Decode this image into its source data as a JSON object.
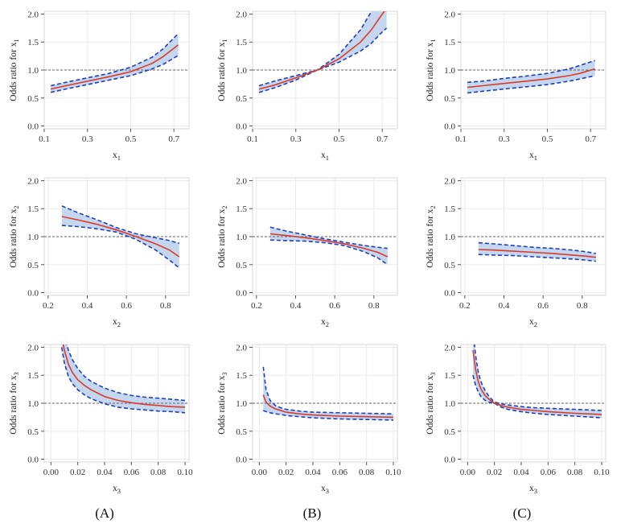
{
  "chart_data": [
    {
      "type": "line",
      "panel": "A",
      "row": 1,
      "xlabel": "x",
      "xlabel_sub": "1",
      "ylabel": "Odds ratio for  x",
      "ylabel_sub": "1",
      "xlim": [
        0.1,
        0.77
      ],
      "ylim": [
        -0.05,
        2.05
      ],
      "xticks": [
        "0.1",
        "0.3",
        "0.5",
        "0.7"
      ],
      "yticks": [
        "0.0",
        "0.5",
        "1.0",
        "1.5",
        "2.0"
      ],
      "ref": 1.0,
      "x": [
        0.13,
        0.2,
        0.3,
        0.4,
        0.5,
        0.6,
        0.65,
        0.72
      ],
      "series": [
        {
          "values": [
            0.66,
            0.72,
            0.8,
            0.88,
            0.97,
            1.12,
            1.24,
            1.45
          ]
        },
        {
          "values": [
            0.72,
            0.78,
            0.86,
            0.94,
            1.05,
            1.23,
            1.38,
            1.65
          ]
        },
        {
          "values": [
            0.6,
            0.66,
            0.74,
            0.82,
            0.9,
            1.02,
            1.1,
            1.26
          ]
        }
      ]
    },
    {
      "type": "line",
      "panel": "B",
      "row": 1,
      "xlabel": "x",
      "xlabel_sub": "1",
      "ylabel": "Odds ratio for  x",
      "ylabel_sub": "1",
      "xlim": [
        0.1,
        0.77
      ],
      "ylim": [
        -0.05,
        2.05
      ],
      "xticks": [
        "0.1",
        "0.3",
        "0.5",
        "0.7"
      ],
      "yticks": [
        "0.0",
        "0.5",
        "1.0",
        "1.5",
        "2.0"
      ],
      "ref": 1.0,
      "x": [
        0.13,
        0.2,
        0.3,
        0.4,
        0.5,
        0.6,
        0.65,
        0.7,
        0.72
      ],
      "series": [
        {
          "values": [
            0.66,
            0.73,
            0.86,
            1.0,
            1.2,
            1.5,
            1.72,
            2.0,
            2.1
          ]
        },
        {
          "values": [
            0.72,
            0.8,
            0.9,
            1.0,
            1.28,
            1.72,
            2.05,
            2.3,
            2.4
          ]
        },
        {
          "values": [
            0.6,
            0.68,
            0.82,
            1.0,
            1.14,
            1.34,
            1.48,
            1.68,
            1.75
          ]
        }
      ]
    },
    {
      "type": "line",
      "panel": "C",
      "row": 1,
      "xlabel": "x",
      "xlabel_sub": "1",
      "ylabel": "Odds ratio for  x",
      "ylabel_sub": "1",
      "xlim": [
        0.1,
        0.77
      ],
      "ylim": [
        -0.05,
        2.05
      ],
      "xticks": [
        "0.1",
        "0.3",
        "0.5",
        "0.7"
      ],
      "yticks": [
        "0.0",
        "0.5",
        "1.0",
        "1.5",
        "2.0"
      ],
      "ref": 1.0,
      "x": [
        0.13,
        0.2,
        0.3,
        0.4,
        0.5,
        0.6,
        0.65,
        0.72
      ],
      "series": [
        {
          "values": [
            0.69,
            0.72,
            0.76,
            0.8,
            0.84,
            0.9,
            0.94,
            1.02
          ]
        },
        {
          "values": [
            0.78,
            0.8,
            0.85,
            0.89,
            0.94,
            1.02,
            1.08,
            1.17
          ]
        },
        {
          "values": [
            0.59,
            0.62,
            0.66,
            0.7,
            0.74,
            0.8,
            0.84,
            0.9
          ]
        }
      ]
    },
    {
      "type": "line",
      "panel": "A",
      "row": 2,
      "xlabel": "x",
      "xlabel_sub": "2",
      "ylabel": "Odds ratio for  x",
      "ylabel_sub": "2",
      "xlim": [
        0.18,
        0.92
      ],
      "ylim": [
        -0.05,
        2.05
      ],
      "xticks": [
        "0.2",
        "0.4",
        "0.6",
        "0.8"
      ],
      "yticks": [
        "0.0",
        "0.5",
        "1.0",
        "1.5",
        "2.0"
      ],
      "ref": 1.0,
      "x": [
        0.27,
        0.35,
        0.45,
        0.55,
        0.65,
        0.75,
        0.82,
        0.87
      ],
      "series": [
        {
          "values": [
            1.36,
            1.3,
            1.22,
            1.12,
            1.0,
            0.87,
            0.76,
            0.64
          ]
        },
        {
          "values": [
            1.55,
            1.43,
            1.3,
            1.16,
            1.05,
            0.98,
            0.93,
            0.88
          ]
        },
        {
          "values": [
            1.2,
            1.18,
            1.14,
            1.08,
            0.95,
            0.76,
            0.58,
            0.44
          ]
        }
      ]
    },
    {
      "type": "line",
      "panel": "B",
      "row": 2,
      "xlabel": "x",
      "xlabel_sub": "2",
      "ylabel": "Odds ratio for  x",
      "ylabel_sub": "2",
      "xlim": [
        0.18,
        0.92
      ],
      "ylim": [
        -0.05,
        2.05
      ],
      "xticks": [
        "0.2",
        "0.4",
        "0.6",
        "0.8"
      ],
      "yticks": [
        "0.0",
        "0.5",
        "1.0",
        "1.5",
        "2.0"
      ],
      "ref": 1.0,
      "x": [
        0.27,
        0.35,
        0.45,
        0.55,
        0.65,
        0.75,
        0.82,
        0.87
      ],
      "series": [
        {
          "values": [
            1.05,
            1.02,
            0.98,
            0.93,
            0.87,
            0.79,
            0.72,
            0.64
          ]
        },
        {
          "values": [
            1.17,
            1.1,
            1.03,
            0.96,
            0.9,
            0.84,
            0.81,
            0.79
          ]
        },
        {
          "values": [
            0.94,
            0.93,
            0.92,
            0.89,
            0.84,
            0.73,
            0.62,
            0.5
          ]
        }
      ]
    },
    {
      "type": "line",
      "panel": "C",
      "row": 2,
      "xlabel": "x",
      "xlabel_sub": "2",
      "ylabel": "Odds ratio for  x",
      "ylabel_sub": "2",
      "xlim": [
        0.18,
        0.92
      ],
      "ylim": [
        -0.05,
        2.05
      ],
      "xticks": [
        "0.2",
        "0.4",
        "0.6",
        "0.8"
      ],
      "yticks": [
        "0.0",
        "0.5",
        "1.0",
        "1.5",
        "2.0"
      ],
      "ref": 1.0,
      "x": [
        0.27,
        0.35,
        0.45,
        0.55,
        0.65,
        0.75,
        0.82,
        0.87
      ],
      "series": [
        {
          "values": [
            0.77,
            0.76,
            0.74,
            0.72,
            0.7,
            0.67,
            0.65,
            0.63
          ]
        },
        {
          "values": [
            0.89,
            0.87,
            0.84,
            0.81,
            0.79,
            0.76,
            0.73,
            0.7
          ]
        },
        {
          "values": [
            0.68,
            0.67,
            0.66,
            0.64,
            0.62,
            0.6,
            0.58,
            0.56
          ]
        }
      ]
    },
    {
      "type": "line",
      "panel": "A",
      "row": 3,
      "xlabel": "x",
      "xlabel_sub": "3",
      "ylabel": "Odds ratio for  x",
      "ylabel_sub": "3",
      "xlim": [
        -0.005,
        0.103
      ],
      "ylim": [
        -0.05,
        2.05
      ],
      "xticks": [
        "0.00",
        "0.02",
        "0.04",
        "0.06",
        "0.08",
        "0.10"
      ],
      "yticks": [
        "0.0",
        "0.5",
        "1.0",
        "1.5",
        "2.0"
      ],
      "ref": 1.0,
      "x": [
        0.008,
        0.01,
        0.013,
        0.016,
        0.02,
        0.025,
        0.03,
        0.04,
        0.05,
        0.06,
        0.07,
        0.08,
        0.09,
        0.1
      ],
      "series": [
        {
          "values": [
            2.2,
            1.95,
            1.7,
            1.55,
            1.42,
            1.32,
            1.24,
            1.12,
            1.05,
            1.01,
            0.98,
            0.96,
            0.94,
            0.93
          ]
        },
        {
          "values": [
            2.45,
            2.2,
            1.95,
            1.78,
            1.62,
            1.48,
            1.39,
            1.27,
            1.19,
            1.14,
            1.11,
            1.09,
            1.07,
            1.05
          ]
        },
        {
          "values": [
            2.0,
            1.72,
            1.48,
            1.35,
            1.24,
            1.15,
            1.08,
            0.99,
            0.93,
            0.9,
            0.88,
            0.86,
            0.85,
            0.83
          ]
        }
      ]
    },
    {
      "type": "line",
      "panel": "B",
      "row": 3,
      "xlabel": "x",
      "xlabel_sub": "3",
      "ylabel": "Odds ratio for  x",
      "ylabel_sub": "3",
      "xlim": [
        -0.005,
        0.103
      ],
      "ylim": [
        -0.05,
        2.05
      ],
      "xticks": [
        "0.00",
        "0.02",
        "0.04",
        "0.06",
        "0.08",
        "0.10"
      ],
      "yticks": [
        "0.0",
        "0.5",
        "1.0",
        "1.5",
        "2.0"
      ],
      "ref": 1.0,
      "x": [
        0.003,
        0.005,
        0.008,
        0.012,
        0.016,
        0.02,
        0.03,
        0.04,
        0.06,
        0.08,
        0.1
      ],
      "series": [
        {
          "values": [
            1.15,
            1.02,
            0.95,
            0.9,
            0.87,
            0.84,
            0.81,
            0.79,
            0.77,
            0.76,
            0.75
          ]
        },
        {
          "values": [
            1.65,
            1.25,
            1.05,
            0.96,
            0.92,
            0.89,
            0.86,
            0.84,
            0.83,
            0.82,
            0.81
          ]
        },
        {
          "values": [
            0.87,
            0.85,
            0.83,
            0.81,
            0.8,
            0.78,
            0.76,
            0.74,
            0.72,
            0.71,
            0.7
          ]
        }
      ]
    },
    {
      "type": "line",
      "panel": "C",
      "row": 3,
      "xlabel": "x",
      "xlabel_sub": "3",
      "ylabel": "Odds ratio for  x",
      "ylabel_sub": "3",
      "xlim": [
        -0.005,
        0.103
      ],
      "ylim": [
        -0.05,
        2.05
      ],
      "xticks": [
        "0.00",
        "0.02",
        "0.04",
        "0.06",
        "0.08",
        "0.10"
      ],
      "yticks": [
        "0.0",
        "0.5",
        "1.0",
        "1.5",
        "2.0"
      ],
      "ref": 1.0,
      "x": [
        0.004,
        0.006,
        0.008,
        0.01,
        0.013,
        0.016,
        0.02,
        0.025,
        0.03,
        0.04,
        0.05,
        0.06,
        0.08,
        0.1
      ],
      "series": [
        {
          "values": [
            1.95,
            1.6,
            1.38,
            1.25,
            1.14,
            1.07,
            1.0,
            0.96,
            0.93,
            0.89,
            0.87,
            0.85,
            0.82,
            0.8
          ]
        },
        {
          "values": [
            2.3,
            1.85,
            1.55,
            1.38,
            1.23,
            1.12,
            1.02,
            0.99,
            0.97,
            0.94,
            0.92,
            0.91,
            0.89,
            0.87
          ]
        },
        {
          "values": [
            1.5,
            1.32,
            1.2,
            1.12,
            1.05,
            1.02,
            1.0,
            0.93,
            0.89,
            0.85,
            0.82,
            0.8,
            0.77,
            0.74
          ]
        }
      ]
    }
  ],
  "captions": [
    "(A)",
    "(B)",
    "(C)"
  ]
}
